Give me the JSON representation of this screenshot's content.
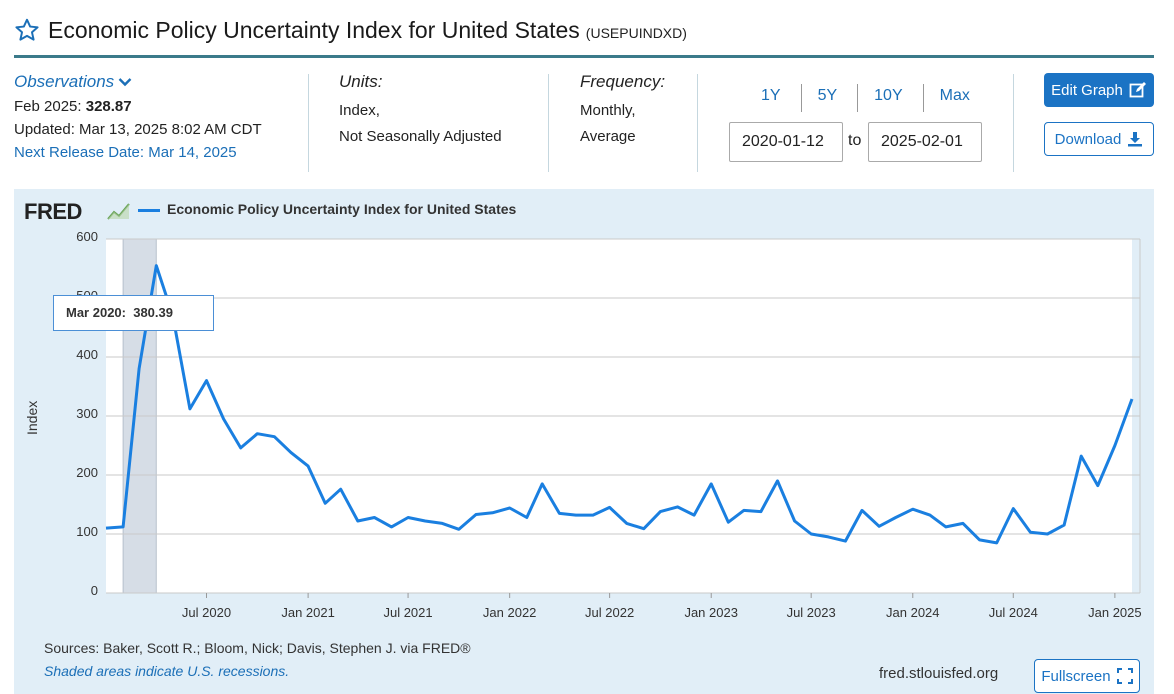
{
  "header": {
    "title": "Economic Policy Uncertainty Index for United States",
    "series_id": "(USEPUINDXD)"
  },
  "observations": {
    "label": "Observations",
    "latest_prefix": "Feb 2025:",
    "latest_value": "328.87",
    "updated": "Updated: Mar 13, 2025 8:02 AM CDT",
    "next_release": "Next Release Date: Mar 14, 2025"
  },
  "units": {
    "header": "Units:",
    "line1": "Index,",
    "line2": "Not Seasonally Adjusted"
  },
  "frequency": {
    "header": "Frequency:",
    "line1": "Monthly,",
    "line2": "Average"
  },
  "ranges": [
    "1Y",
    "5Y",
    "10Y",
    "Max"
  ],
  "date_range": {
    "start": "2020-01-12",
    "to": "to",
    "end": "2025-02-01"
  },
  "buttons": {
    "edit": "Edit Graph",
    "download": "Download",
    "fullscreen": "Fullscreen"
  },
  "tooltip": {
    "label": "Mar 2020:",
    "value": "380.39"
  },
  "footer": {
    "sources": "Sources: Baker, Scott R.; Bloom, Nick; Davis, Stephen J. via FRED®",
    "recession_note": "Shaded areas indicate U.S. recessions.",
    "url": "fred.stlouisfed.org"
  },
  "colors": {
    "line": "#1a7fe0",
    "accent": "#1b73c4",
    "panel_bg": "#e1eef7",
    "recession": "#d6dde6"
  },
  "chart_data": {
    "type": "line",
    "logo": "FRED",
    "title": "Economic Policy Uncertainty Index for United States",
    "ylabel": "Index",
    "ylim": [
      0,
      600
    ],
    "yticks": [
      0,
      100,
      200,
      300,
      400,
      500,
      600
    ],
    "xticks": [
      {
        "label": "Jul 2020",
        "date": "2020-07"
      },
      {
        "label": "Jan 2021",
        "date": "2021-01"
      },
      {
        "label": "Jul 2021",
        "date": "2021-07"
      },
      {
        "label": "Jan 2022",
        "date": "2022-01"
      },
      {
        "label": "Jul 2022",
        "date": "2022-07"
      },
      {
        "label": "Jan 2023",
        "date": "2023-01"
      },
      {
        "label": "Jul 2023",
        "date": "2023-07"
      },
      {
        "label": "Jan 2024",
        "date": "2024-01"
      },
      {
        "label": "Jul 2024",
        "date": "2024-07"
      },
      {
        "label": "Jan 2025",
        "date": "2025-01"
      }
    ],
    "recessions": [
      {
        "start": "2020-02",
        "end": "2020-04"
      }
    ],
    "grid": true,
    "series": [
      {
        "name": "Economic Policy Uncertainty Index for United States",
        "x": [
          "2020-01",
          "2020-02",
          "2020-03",
          "2020-04",
          "2020-05",
          "2020-06",
          "2020-07",
          "2020-08",
          "2020-09",
          "2020-10",
          "2020-11",
          "2020-12",
          "2021-01",
          "2021-02",
          "2021-03",
          "2021-04",
          "2021-05",
          "2021-06",
          "2021-07",
          "2021-08",
          "2021-09",
          "2021-10",
          "2021-11",
          "2021-12",
          "2022-01",
          "2022-02",
          "2022-03",
          "2022-04",
          "2022-05",
          "2022-06",
          "2022-07",
          "2022-08",
          "2022-09",
          "2022-10",
          "2022-11",
          "2022-12",
          "2023-01",
          "2023-02",
          "2023-03",
          "2023-04",
          "2023-05",
          "2023-06",
          "2023-07",
          "2023-08",
          "2023-09",
          "2023-10",
          "2023-11",
          "2023-12",
          "2024-01",
          "2024-02",
          "2024-03",
          "2024-04",
          "2024-05",
          "2024-06",
          "2024-07",
          "2024-08",
          "2024-09",
          "2024-10",
          "2024-11",
          "2024-12",
          "2025-01",
          "2025-02"
        ],
        "y": [
          110,
          112,
          380.39,
          555,
          470,
          312,
          360,
          295,
          246,
          270,
          265,
          238,
          215,
          152,
          176,
          122,
          128,
          112,
          128,
          122,
          118,
          108,
          133,
          136,
          144,
          128,
          185,
          135,
          132,
          132,
          145,
          118,
          109,
          138,
          146,
          132,
          185,
          120,
          140,
          138,
          190,
          122,
          100,
          95,
          88,
          140,
          113,
          128,
          142,
          132,
          112,
          118,
          90,
          85,
          143,
          103,
          100,
          115,
          232,
          182,
          250,
          328.87
        ]
      }
    ]
  }
}
